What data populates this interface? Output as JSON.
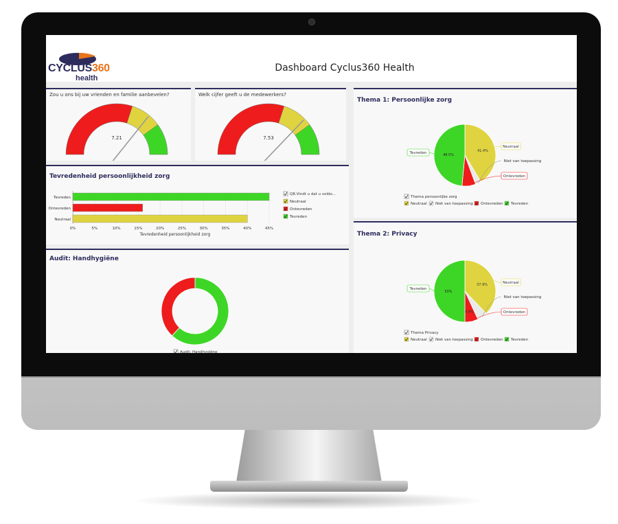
{
  "dashboard_title": "Dashboard Cyclus360 Health",
  "logo": {
    "main": "CYCLUS",
    "number": "360",
    "sub": "health"
  },
  "colors": {
    "tevreden": "#3ed626",
    "neutraal": "#dfd43f",
    "ontevreden": "#ee1c1c",
    "niet_van_toepassing": "#e9e9e9",
    "accent": "#2e2c5c"
  },
  "gauges": [
    {
      "question": "Zou u ons bij uw vrienden en familie aanbevelen?",
      "value": 7.21,
      "value_label": "7.21"
    },
    {
      "question": "Welk cijfer geeft u de medewerkers?",
      "value": 7.53,
      "value_label": "7.53"
    }
  ],
  "bar_panel": {
    "title": "Tevredenheid persoonlijkheid zorg",
    "xlabel": "Tevredenheid persoonlijkheid zorg",
    "categories": [
      "Tevreden",
      "Ontevreden",
      "Neutraal"
    ],
    "values": [
      45,
      16,
      40
    ],
    "ticks": [
      "0%",
      "5%",
      "10%",
      "15%",
      "20%",
      "25%",
      "30%",
      "35%",
      "40%",
      "45%"
    ],
    "legend_title": "Q8.Vindt u dat u voldo...",
    "legend": [
      "Neutraal",
      "Ontevreden",
      "Tevreden"
    ]
  },
  "donut_panel": {
    "title": "Audit: Handhygiëne",
    "values": [
      62,
      38
    ],
    "legend_title": "Audit: Handhygiëne"
  },
  "themes": [
    {
      "title": "Thema 1: Persoonlijke zorg",
      "slices": [
        {
          "name": "Neutraal",
          "value": 41.4,
          "label": "41.4%"
        },
        {
          "name": "Niet van toepassing",
          "value": 3.0
        },
        {
          "name": "Ontevreden",
          "value": 7.1
        },
        {
          "name": "Tevreden",
          "value": 48.5,
          "label": "48.5%"
        }
      ],
      "legend_title": "Thema persoonlijke zorg",
      "legend": [
        "Neutraal",
        "Niet van toepassing",
        "Ontevreden",
        "Tevreden"
      ]
    },
    {
      "title": "Thema 2: Privacy",
      "slices": [
        {
          "name": "Neutraal",
          "value": 37.9,
          "label": "37.9%"
        },
        {
          "name": "Niet van toepassing",
          "value": 5.2
        },
        {
          "name": "Ontevreden",
          "value": 6.9,
          "label": "6.9%"
        },
        {
          "name": "Tevreden",
          "value": 50,
          "label": "50%"
        }
      ],
      "legend_title": "Thema Privacy",
      "legend": [
        "Neutraal",
        "Niet van toepassing",
        "Ontevreden",
        "Tevreden"
      ]
    }
  ]
}
